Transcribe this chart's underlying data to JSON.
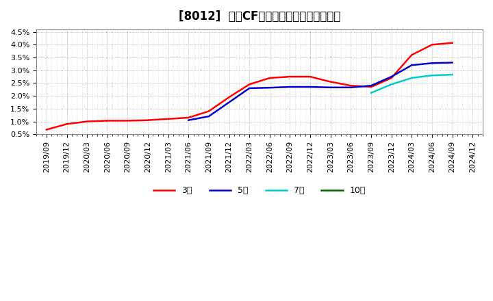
{
  "title": "[8012]  営業CFマージンの標準偏差の推移",
  "ylim": [
    0.005,
    0.046
  ],
  "yticks": [
    0.005,
    0.01,
    0.015,
    0.02,
    0.025,
    0.03,
    0.035,
    0.04,
    0.045
  ],
  "ytick_labels": [
    "0.5%",
    "1.0%",
    "1.5%",
    "2.0%",
    "2.5%",
    "3.0%",
    "3.5%",
    "4.0%",
    "4.5%"
  ],
  "x_labels": [
    "2019/09",
    "2019/12",
    "2020/03",
    "2020/06",
    "2020/09",
    "2020/12",
    "2021/03",
    "2021/06",
    "2021/09",
    "2021/12",
    "2022/03",
    "2022/06",
    "2022/09",
    "2022/12",
    "2023/03",
    "2023/06",
    "2023/09",
    "2023/12",
    "2024/03",
    "2024/06",
    "2024/09",
    "2024/12"
  ],
  "series_3y": {
    "label": "3年",
    "color": "#ff0000",
    "x": [
      0,
      1,
      2,
      3,
      4,
      5,
      6,
      7,
      8,
      9,
      10,
      11,
      12,
      13,
      14,
      15,
      16,
      17,
      18,
      19,
      20
    ],
    "y": [
      0.0068,
      0.009,
      0.01,
      0.0103,
      0.0103,
      0.0105,
      0.011,
      0.0115,
      0.014,
      0.0195,
      0.0245,
      0.027,
      0.0275,
      0.0275,
      0.0255,
      0.024,
      0.0235,
      0.027,
      0.036,
      0.04,
      0.0407
    ]
  },
  "series_5y": {
    "label": "5年",
    "color": "#0000cc",
    "x": [
      7,
      8,
      9,
      10,
      11,
      12,
      13,
      14,
      15,
      16,
      17,
      18,
      19,
      20
    ],
    "y": [
      0.0105,
      0.012,
      0.0175,
      0.023,
      0.0232,
      0.0235,
      0.0235,
      0.0233,
      0.0233,
      0.024,
      0.0275,
      0.032,
      0.0328,
      0.033
    ]
  },
  "series_7y": {
    "label": "7年",
    "color": "#00cccc",
    "x": [
      16,
      17,
      18,
      19,
      20
    ],
    "y": [
      0.0212,
      0.0245,
      0.027,
      0.028,
      0.0283
    ]
  },
  "series_10y": {
    "label": "10年",
    "color": "#006600",
    "x": [],
    "y": []
  },
  "background_color": "#ffffff",
  "plot_bg_color": "#ffffff",
  "grid_color": "#999999",
  "title_fontsize": 12,
  "legend_fontsize": 9,
  "tick_fontsize": 8
}
